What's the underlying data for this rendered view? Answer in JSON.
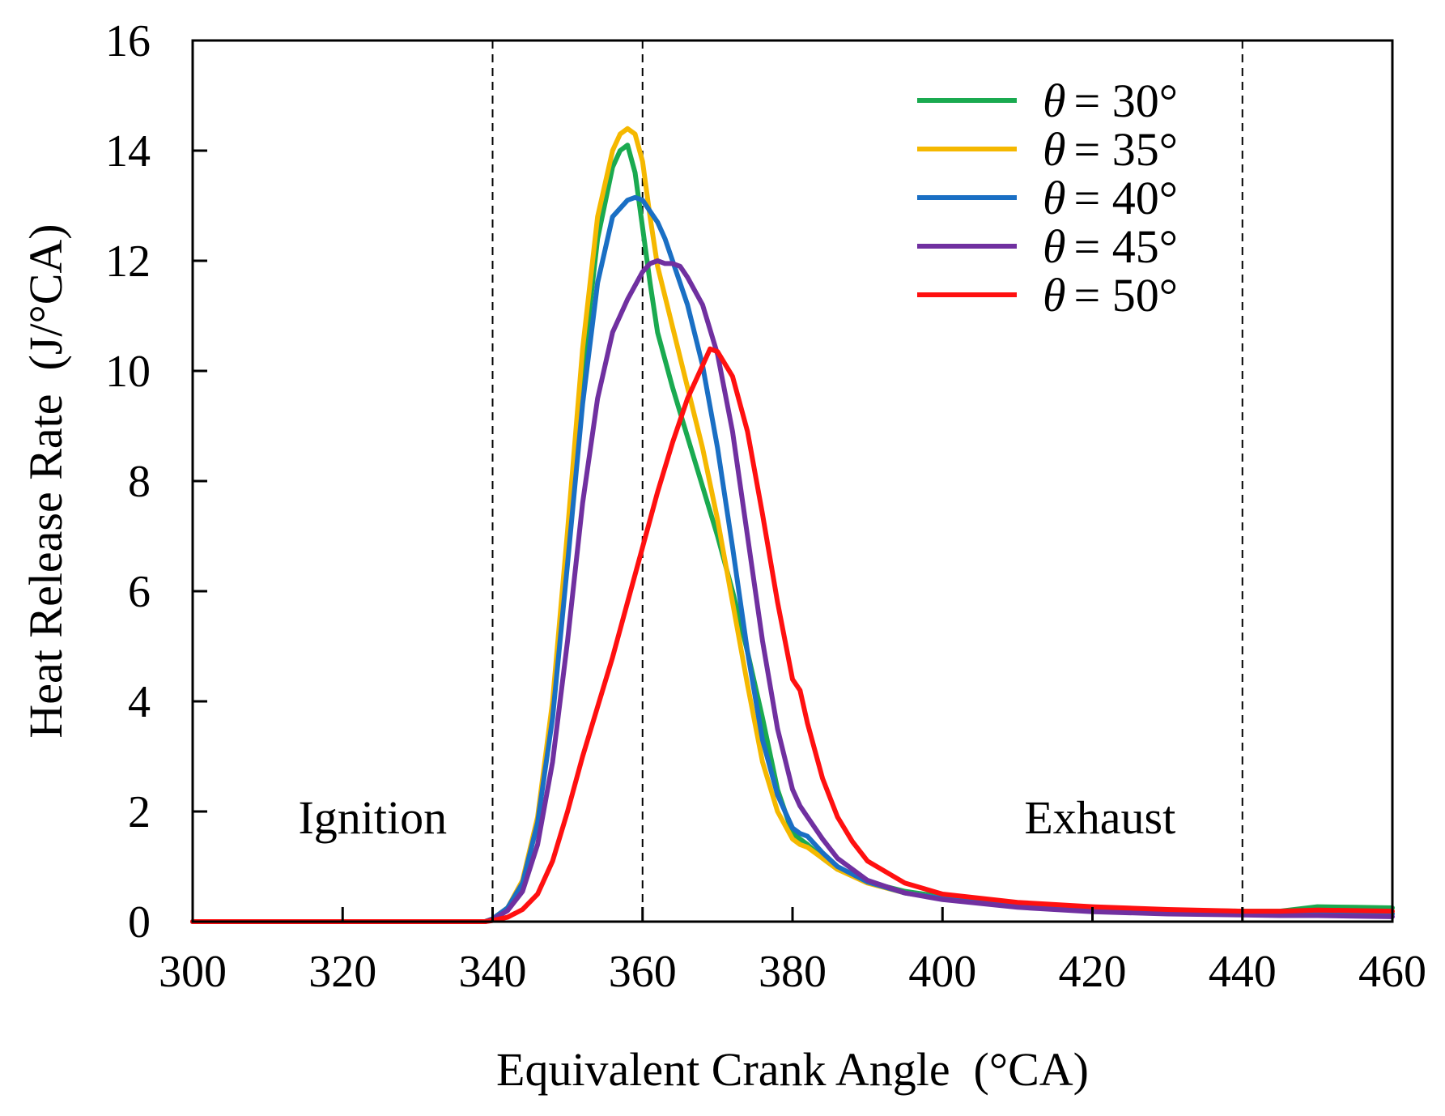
{
  "chart_data": {
    "type": "line",
    "title": "",
    "xlabel": "Equivalent Crank Angle  (°CA)",
    "ylabel": "Heat Release Rate  (J/°CA)",
    "xlim": [
      300,
      460
    ],
    "ylim": [
      0,
      16
    ],
    "xticks": [
      "300",
      "320",
      "340",
      "360",
      "380",
      "400",
      "420",
      "440",
      "460"
    ],
    "yticks": [
      "0",
      "2",
      "4",
      "6",
      "8",
      "10",
      "12",
      "14",
      "16"
    ],
    "grid": false,
    "legend_position": "top-right",
    "vertical_markers": [
      340,
      360,
      440
    ],
    "annotations": [
      {
        "text": "Ignition",
        "x": 324,
        "y": 1.9
      },
      {
        "text": "Exhaust",
        "x": 421,
        "y": 1.9
      }
    ],
    "series": [
      {
        "name": "θ = 30°",
        "legend_symbol": "θ",
        "legend_value": "= 30°",
        "color": "#1aaa50",
        "x": [
          300,
          339,
          340,
          342,
          344,
          346,
          348,
          350,
          352,
          354,
          356,
          357,
          358,
          359,
          360,
          361,
          362,
          364,
          366,
          368,
          370,
          372,
          374,
          376,
          378,
          380,
          381,
          382,
          384,
          386,
          390,
          395,
          400,
          410,
          420,
          430,
          440,
          445,
          450,
          455,
          460
        ],
        "y": [
          0,
          0,
          0.05,
          0.25,
          0.7,
          1.8,
          3.8,
          6.8,
          10.0,
          12.4,
          13.7,
          14.0,
          14.1,
          13.6,
          12.6,
          11.6,
          10.7,
          9.7,
          8.8,
          7.9,
          7.0,
          6.0,
          4.9,
          3.7,
          2.4,
          1.6,
          1.5,
          1.4,
          1.15,
          0.95,
          0.72,
          0.55,
          0.45,
          0.32,
          0.25,
          0.21,
          0.19,
          0.19,
          0.27,
          0.26,
          0.25
        ]
      },
      {
        "name": "θ = 35°",
        "legend_symbol": "θ",
        "legend_value": "= 35°",
        "color": "#f5b800",
        "x": [
          300,
          339,
          340,
          342,
          344,
          346,
          348,
          350,
          352,
          354,
          356,
          357,
          358,
          359,
          360,
          361,
          362,
          364,
          366,
          368,
          370,
          372,
          374,
          376,
          378,
          380,
          381,
          382,
          384,
          386,
          390,
          395,
          400,
          410,
          420,
          430,
          440,
          445,
          450,
          455,
          460
        ],
        "y": [
          0,
          0,
          0.05,
          0.25,
          0.75,
          1.9,
          4.0,
          7.1,
          10.4,
          12.8,
          14.0,
          14.3,
          14.4,
          14.3,
          13.8,
          12.8,
          11.9,
          10.8,
          9.7,
          8.6,
          7.3,
          5.8,
          4.3,
          2.9,
          2.0,
          1.5,
          1.4,
          1.35,
          1.15,
          0.95,
          0.7,
          0.52,
          0.42,
          0.3,
          0.23,
          0.19,
          0.17,
          0.16,
          0.17,
          0.16,
          0.15
        ]
      },
      {
        "name": "θ = 40°",
        "legend_symbol": "θ",
        "legend_value": "= 40°",
        "color": "#1a6fc4",
        "x": [
          300,
          339,
          340,
          342,
          344,
          346,
          348,
          350,
          352,
          354,
          356,
          358,
          359,
          360,
          361,
          362,
          363,
          364,
          366,
          368,
          370,
          372,
          374,
          376,
          378,
          380,
          381,
          382,
          384,
          386,
          390,
          395,
          400,
          410,
          420,
          430,
          440,
          445,
          450,
          455,
          460
        ],
        "y": [
          0,
          0,
          0.05,
          0.25,
          0.7,
          1.8,
          3.7,
          6.5,
          9.4,
          11.6,
          12.8,
          13.1,
          13.15,
          13.1,
          12.9,
          12.7,
          12.4,
          12.0,
          11.2,
          10.1,
          8.6,
          6.8,
          4.9,
          3.3,
          2.3,
          1.7,
          1.6,
          1.55,
          1.25,
          1.0,
          0.72,
          0.52,
          0.42,
          0.3,
          0.22,
          0.18,
          0.16,
          0.15,
          0.16,
          0.15,
          0.14
        ]
      },
      {
        "name": "θ = 45°",
        "legend_symbol": "θ",
        "legend_value": "= 45°",
        "color": "#7030a0",
        "x": [
          300,
          339,
          340,
          342,
          344,
          346,
          348,
          350,
          352,
          354,
          356,
          358,
          360,
          361,
          362,
          363,
          364,
          365,
          366,
          368,
          370,
          372,
          374,
          376,
          378,
          380,
          381,
          382,
          384,
          386,
          390,
          395,
          400,
          410,
          420,
          430,
          440,
          445,
          450,
          455,
          460
        ],
        "y": [
          0,
          0,
          0.04,
          0.2,
          0.55,
          1.4,
          2.9,
          5.1,
          7.6,
          9.5,
          10.7,
          11.3,
          11.8,
          11.95,
          12.0,
          11.95,
          11.95,
          11.9,
          11.7,
          11.2,
          10.3,
          8.9,
          7.0,
          5.1,
          3.5,
          2.4,
          2.1,
          1.9,
          1.5,
          1.15,
          0.75,
          0.52,
          0.4,
          0.26,
          0.18,
          0.14,
          0.12,
          0.11,
          0.11,
          0.1,
          0.09
        ]
      },
      {
        "name": "θ = 50°",
        "legend_symbol": "θ",
        "legend_value": "= 50°",
        "color": "#ff1010",
        "x": [
          300,
          339,
          340,
          342,
          344,
          346,
          348,
          350,
          352,
          354,
          356,
          358,
          360,
          362,
          364,
          366,
          368,
          369,
          370,
          372,
          374,
          376,
          378,
          380,
          381,
          382,
          384,
          386,
          388,
          390,
          395,
          400,
          410,
          420,
          430,
          440,
          445,
          450,
          455,
          460
        ],
        "y": [
          0,
          0,
          0.02,
          0.08,
          0.22,
          0.5,
          1.1,
          2.0,
          3.0,
          3.9,
          4.8,
          5.8,
          6.8,
          7.8,
          8.7,
          9.5,
          10.1,
          10.4,
          10.35,
          9.9,
          8.9,
          7.4,
          5.8,
          4.4,
          4.2,
          3.6,
          2.6,
          1.9,
          1.45,
          1.1,
          0.7,
          0.5,
          0.35,
          0.27,
          0.22,
          0.19,
          0.19,
          0.21,
          0.2,
          0.19
        ]
      }
    ]
  }
}
